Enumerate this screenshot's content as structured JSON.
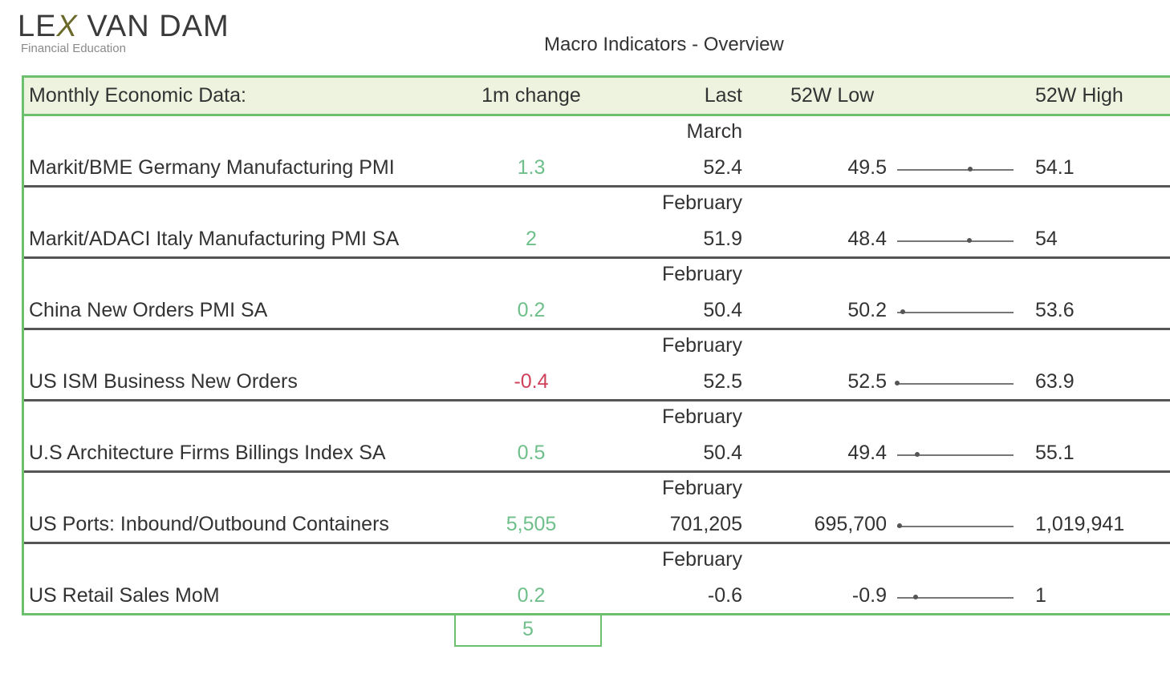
{
  "logo": {
    "part1": "LE",
    "x": "X",
    "part2": " VAN DAM",
    "subtitle": "Financial Education"
  },
  "title": "Macro Indicators - Overview",
  "header": {
    "name": "Monthly Economic Data:",
    "change": "1m change",
    "last": "Last",
    "low": "52W Low",
    "high": "52W High"
  },
  "rows": [
    {
      "name": "Markit/BME Germany Manufacturing PMI",
      "month": "March",
      "change": "1.3",
      "last": "52.4",
      "low": "49.5",
      "high": "54.1",
      "dot_pct": 63
    },
    {
      "name": "Markit/ADACI Italy Manufacturing PMI SA",
      "month": "February",
      "change": "2",
      "last": "51.9",
      "low": "48.4",
      "high": "54",
      "dot_pct": 62
    },
    {
      "name": "China New Orders PMI SA",
      "month": "February",
      "change": "0.2",
      "last": "50.4",
      "low": "50.2",
      "high": "53.6",
      "dot_pct": 5
    },
    {
      "name": "US ISM Business New Orders",
      "month": "February",
      "change": "-0.4",
      "last": "52.5",
      "low": "52.5",
      "high": "63.9",
      "dot_pct": 0
    },
    {
      "name": "U.S Architecture Firms Billings Index SA",
      "month": "February",
      "change": "0.5",
      "last": "50.4",
      "low": "49.4",
      "high": "55.1",
      "dot_pct": 17
    },
    {
      "name": "US Ports: Inbound/Outbound Containers",
      "month": "February",
      "change": "5,505",
      "last": "701,205",
      "low": "695,700",
      "high": "1,019,941",
      "dot_pct": 2
    },
    {
      "name": "US Retail Sales MoM",
      "month": "February",
      "change": "0.2",
      "last": "-0.6",
      "low": "-0.9",
      "high": "1",
      "dot_pct": 16
    }
  ],
  "total": "5",
  "colors": {
    "positive": "#6fbf8a",
    "negative": "#d0405a",
    "border": "#6cbf6c",
    "header_bg": "#eef3e0"
  }
}
